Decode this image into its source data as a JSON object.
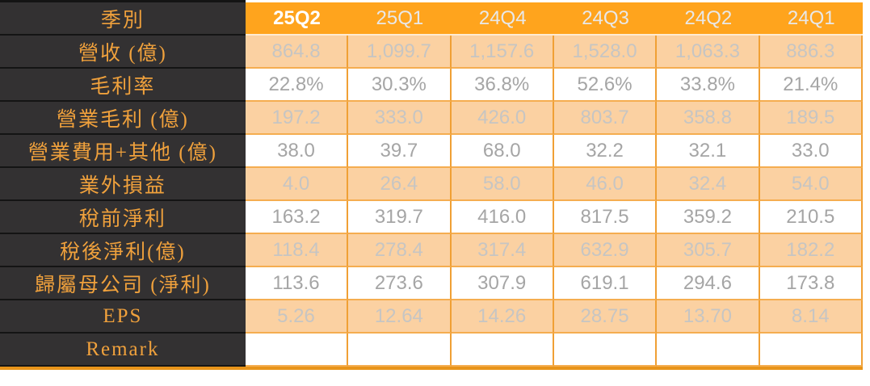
{
  "chart_data": {
    "type": "table",
    "corner_label": "季別",
    "columns": [
      "25Q2",
      "25Q1",
      "24Q4",
      "24Q3",
      "24Q2",
      "24Q1"
    ],
    "highlighted_column": "25Q2",
    "rows": [
      {
        "label": "營收 (億)",
        "values": [
          "864.8",
          "1,099.7",
          "1,157.6",
          "1,528.0",
          "1,063.3",
          "886.3"
        ]
      },
      {
        "label": "毛利率",
        "values": [
          "22.8%",
          "30.3%",
          "36.8%",
          "52.6%",
          "33.8%",
          "21.4%"
        ]
      },
      {
        "label": "營業毛利 (億)",
        "values": [
          "197.2",
          "333.0",
          "426.0",
          "803.7",
          "358.8",
          "189.5"
        ]
      },
      {
        "label": "營業費用+其他 (億)",
        "values": [
          "38.0",
          "39.7",
          "68.0",
          "32.2",
          "32.1",
          "33.0"
        ]
      },
      {
        "label": "業外損益",
        "values": [
          "4.0",
          "26.4",
          "58.0",
          "46.0",
          "32.4",
          "54.0"
        ]
      },
      {
        "label": "稅前淨利",
        "values": [
          "163.2",
          "319.7",
          "416.0",
          "817.5",
          "359.2",
          "210.5"
        ]
      },
      {
        "label": "稅後淨利(億)",
        "values": [
          "118.4",
          "278.4",
          "317.4",
          "632.9",
          "305.7",
          "182.2"
        ]
      },
      {
        "label": "歸屬母公司 (淨利)",
        "values": [
          "113.6",
          "273.6",
          "307.9",
          "619.1",
          "294.6",
          "173.8"
        ]
      },
      {
        "label": "EPS",
        "values": [
          "5.26",
          "12.64",
          "14.26",
          "28.75",
          "13.70",
          "8.14"
        ]
      },
      {
        "label": "Remark",
        "values": [
          "",
          "",
          "",
          "",
          "",
          ""
        ]
      }
    ]
  },
  "colors": {
    "header_bg": "#FFA41D",
    "header_text": "#E8E8E8",
    "header_current_text": "#FFFFFF",
    "header_underline": "#FFEBD2",
    "label_bg": "#333132",
    "label_text": "#F0A13C",
    "label_separator": "#141414",
    "row_peach_bg": "#FBD1A2",
    "grid_vertical": "#F0A035",
    "grid_horizontal": "#F5AD50",
    "current_value_text": "#2264A9",
    "past_value_on_white": "#A5A5A5",
    "past_value_on_peach": "#C6C5C3",
    "bottom_border": "#E8941A"
  }
}
